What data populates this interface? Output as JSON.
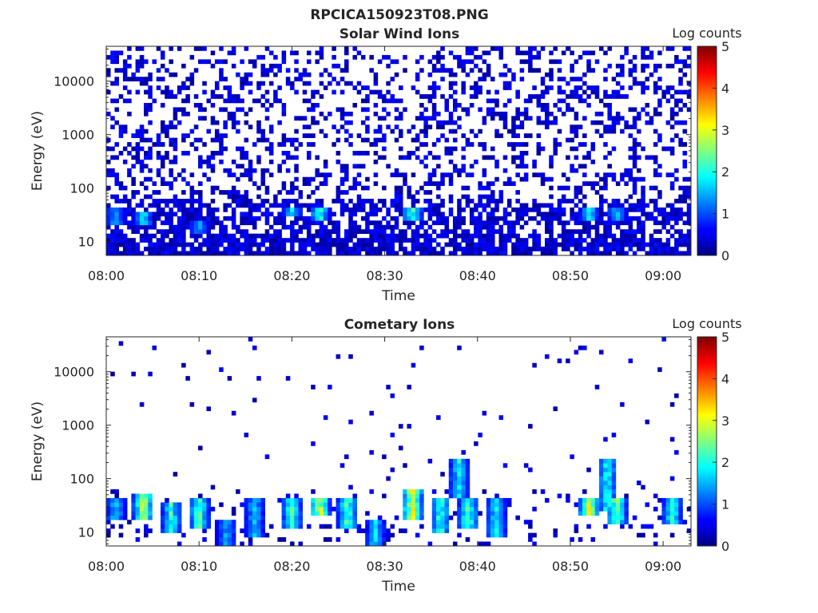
{
  "figure": {
    "title": "RPCICA150923T08.PNG"
  },
  "colormap": "jet",
  "chart_data": [
    {
      "type": "heatmap",
      "title": "Solar Wind Ions",
      "xlabel": "Time",
      "ylabel": "Energy (eV)",
      "x_range": [
        "08:00",
        "09:03"
      ],
      "x_ticks": [
        "08:00",
        "08:10",
        "08:20",
        "08:30",
        "08:40",
        "08:50",
        "09:00"
      ],
      "y_scale": "log",
      "y_range": [
        5.5,
        45000
      ],
      "y_ticks": [
        "10",
        "100",
        "1000",
        "10000"
      ],
      "colorbar": {
        "label": "Log counts",
        "range": [
          0,
          5
        ],
        "ticks": [
          "0",
          "1",
          "2",
          "3",
          "4",
          "5"
        ]
      },
      "time_bins": 140,
      "energy_bins": 48,
      "background_density": 0.3,
      "hotspots": [
        {
          "time": "08:01",
          "energy_min": 22,
          "energy_max": 40,
          "level": 1.6
        },
        {
          "time": "08:04",
          "energy_min": 20,
          "energy_max": 35,
          "level": 1.9
        },
        {
          "time": "08:10",
          "energy_min": 15,
          "energy_max": 25,
          "level": 1.5
        },
        {
          "time": "08:20",
          "energy_min": 30,
          "energy_max": 40,
          "level": 1.8
        },
        {
          "time": "08:23",
          "energy_min": 25,
          "energy_max": 40,
          "level": 2.2
        },
        {
          "time": "08:33",
          "energy_min": 25,
          "energy_max": 45,
          "level": 2.3
        },
        {
          "time": "08:52",
          "energy_min": 25,
          "energy_max": 45,
          "level": 1.9
        },
        {
          "time": "08:55",
          "energy_min": 25,
          "energy_max": 40,
          "level": 1.6
        }
      ]
    },
    {
      "type": "heatmap",
      "title": "Cometary Ions",
      "xlabel": "Time",
      "ylabel": "Energy (eV)",
      "x_range": [
        "08:00",
        "09:03"
      ],
      "x_ticks": [
        "08:00",
        "08:10",
        "08:20",
        "08:30",
        "08:40",
        "08:50",
        "09:00"
      ],
      "y_scale": "log",
      "y_range": [
        5.5,
        45000
      ],
      "y_ticks": [
        "10",
        "100",
        "1000",
        "10000"
      ],
      "colorbar": {
        "label": "Log counts",
        "range": [
          0,
          5
        ],
        "ticks": [
          "0",
          "1",
          "2",
          "3",
          "4",
          "5"
        ]
      },
      "time_bins": 140,
      "energy_bins": 48,
      "background_density": 0.02,
      "hotspots": [
        {
          "time": "08:01",
          "energy_min": 18,
          "energy_max": 40,
          "level": 1.8
        },
        {
          "time": "08:04",
          "energy_min": 18,
          "energy_max": 50,
          "level": 3.0
        },
        {
          "time": "08:07",
          "energy_min": 10,
          "energy_max": 35,
          "level": 2.2
        },
        {
          "time": "08:10",
          "energy_min": 12,
          "energy_max": 40,
          "level": 2.4
        },
        {
          "time": "08:13",
          "energy_min": 6,
          "energy_max": 18,
          "level": 1.6
        },
        {
          "time": "08:16",
          "energy_min": 8,
          "energy_max": 40,
          "level": 1.7
        },
        {
          "time": "08:20",
          "energy_min": 12,
          "energy_max": 40,
          "level": 2.3
        },
        {
          "time": "08:23",
          "energy_min": 20,
          "energy_max": 40,
          "level": 3.1
        },
        {
          "time": "08:26",
          "energy_min": 12,
          "energy_max": 40,
          "level": 2.5
        },
        {
          "time": "08:29",
          "energy_min": 6,
          "energy_max": 18,
          "level": 1.8
        },
        {
          "time": "08:33",
          "energy_min": 18,
          "energy_max": 60,
          "level": 3.3
        },
        {
          "time": "08:36",
          "energy_min": 10,
          "energy_max": 40,
          "level": 2.3
        },
        {
          "time": "08:38",
          "energy_min": 40,
          "energy_max": 250,
          "level": 2.0
        },
        {
          "time": "08:39",
          "energy_min": 12,
          "energy_max": 40,
          "level": 2.4
        },
        {
          "time": "08:42",
          "energy_min": 8,
          "energy_max": 40,
          "level": 2.0
        },
        {
          "time": "08:52",
          "energy_min": 20,
          "energy_max": 40,
          "level": 3.2
        },
        {
          "time": "08:54",
          "energy_min": 25,
          "energy_max": 250,
          "level": 2.1
        },
        {
          "time": "08:55",
          "energy_min": 15,
          "energy_max": 40,
          "level": 2.7
        },
        {
          "time": "09:01",
          "energy_min": 15,
          "energy_max": 40,
          "level": 2.2
        }
      ]
    }
  ]
}
